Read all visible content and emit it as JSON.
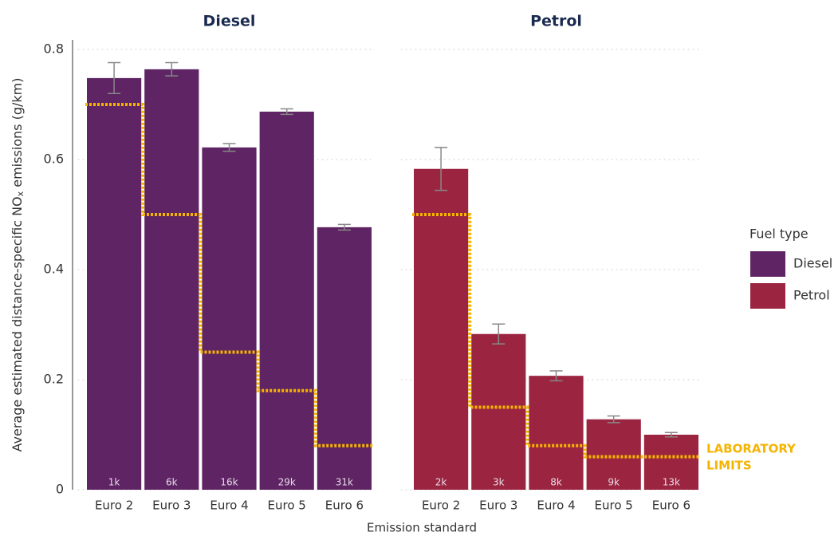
{
  "chart_data": [
    {
      "type": "bar",
      "title": "Diesel",
      "categories": [
        "Euro 2",
        "Euro 3",
        "Euro 4",
        "Euro 5",
        "Euro 6"
      ],
      "series": [
        {
          "name": "Diesel",
          "color": "#5e2463",
          "values": [
            0.748,
            0.764,
            0.622,
            0.687,
            0.477
          ],
          "errors": [
            0.028,
            0.012,
            0.007,
            0.005,
            0.005
          ],
          "counts": [
            "1k",
            "6k",
            "16k",
            "29k",
            "31k"
          ]
        }
      ],
      "limits": [
        0.7,
        0.5,
        0.25,
        0.18,
        0.08
      ],
      "limit_color": "#f5b400",
      "ylim": [
        0,
        0.8
      ],
      "yticks": [
        0.0,
        0.2,
        0.4,
        0.6,
        0.8
      ],
      "grid": true,
      "ylabel": [
        "Average estimated distance-specific NO",
        "x",
        " emissions (g/km)"
      ],
      "xlabel": "Emission standard",
      "legend_title": "Fuel type",
      "annotation": [
        "LABORATORY",
        "LIMITS"
      ]
    },
    {
      "type": "bar",
      "title": "Petrol",
      "categories": [
        "Euro 2",
        "Euro 3",
        "Euro 4",
        "Euro 5",
        "Euro 6"
      ],
      "series": [
        {
          "name": "Petrol",
          "color": "#9b2540",
          "values": [
            0.583,
            0.283,
            0.207,
            0.128,
            0.1
          ],
          "errors": [
            0.039,
            0.018,
            0.009,
            0.006,
            0.004
          ],
          "counts": [
            "2k",
            "3k",
            "8k",
            "9k",
            "13k"
          ]
        }
      ],
      "limits": [
        0.5,
        0.15,
        0.08,
        0.06,
        0.06
      ],
      "limit_color": "#f5b400",
      "ylim": [
        0,
        0.8
      ],
      "yticks": [
        0.0,
        0.2,
        0.4,
        0.6,
        0.8
      ],
      "grid": true
    }
  ]
}
